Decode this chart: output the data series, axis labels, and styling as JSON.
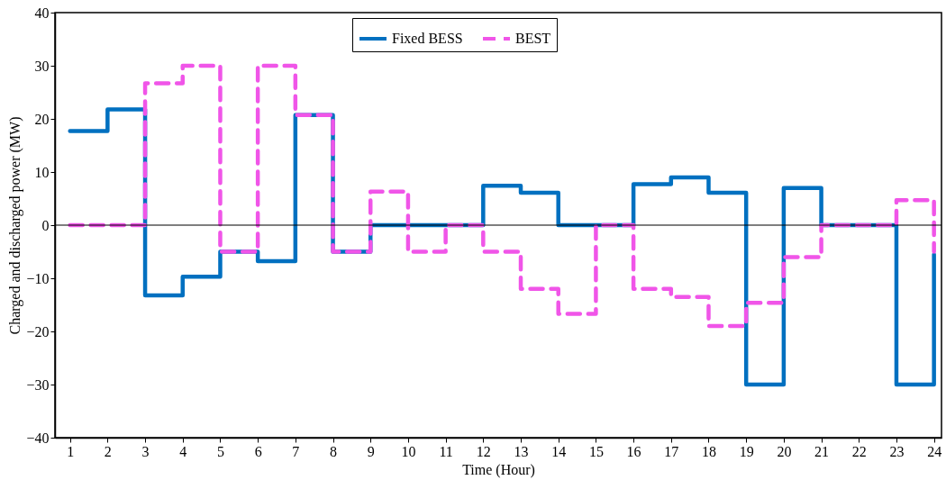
{
  "chart_data": {
    "type": "step",
    "xlabel": "Time (Hour)",
    "ylabel": "Charged and discharged power (MW)",
    "x": [
      1,
      2,
      3,
      4,
      5,
      6,
      7,
      8,
      9,
      10,
      11,
      12,
      13,
      14,
      15,
      16,
      17,
      18,
      19,
      20,
      21,
      22,
      23,
      24
    ],
    "series": [
      {
        "name": "Fixed BESS",
        "color": "#0070c0",
        "line_style": "solid",
        "values": [
          17.7,
          21.8,
          -13.2,
          -9.7,
          -5,
          -6.8,
          20.7,
          -5,
          0,
          0,
          0,
          7.4,
          6.1,
          0,
          0,
          7.7,
          9,
          6.1,
          -30,
          7,
          0,
          0,
          -30,
          -5.5
        ]
      },
      {
        "name": "BEST",
        "color": "#f055e8",
        "line_style": "dashed",
        "values": [
          0,
          0,
          26.7,
          30,
          -5,
          30,
          20.7,
          -5,
          6.3,
          -5,
          0,
          -5,
          -12,
          -16.7,
          0,
          -12,
          -13.5,
          -19,
          -14.6,
          -6,
          0,
          0,
          4.7,
          -5
        ]
      }
    ],
    "xlim": [
      0.6,
      24.2
    ],
    "xticks": [
      1,
      2,
      3,
      4,
      5,
      6,
      7,
      8,
      9,
      10,
      11,
      12,
      13,
      14,
      15,
      16,
      17,
      18,
      19,
      20,
      21,
      22,
      23,
      24
    ],
    "ylim": [
      -40,
      40
    ],
    "yticks": [
      -40,
      -30,
      -20,
      -10,
      0,
      10,
      20,
      30,
      40
    ],
    "ref_lines": [
      {
        "axis": "y",
        "value": 0,
        "color": "#000000"
      }
    ],
    "grid": false,
    "legend": "top"
  }
}
